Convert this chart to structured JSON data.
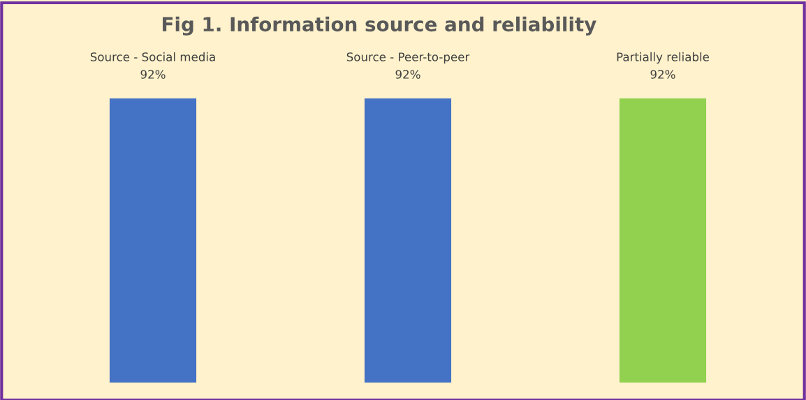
{
  "chart_data": {
    "type": "bar",
    "title": "Fig 1. Information source and reliability",
    "categories": [
      "Source - Social media",
      "Source - Peer-to-peer",
      "Partially reliable"
    ],
    "values": [
      92,
      92,
      92
    ],
    "value_labels": [
      "92%",
      "92%",
      "92%"
    ],
    "colors": [
      "#4472c4",
      "#4472c4",
      "#92d050"
    ]
  }
}
